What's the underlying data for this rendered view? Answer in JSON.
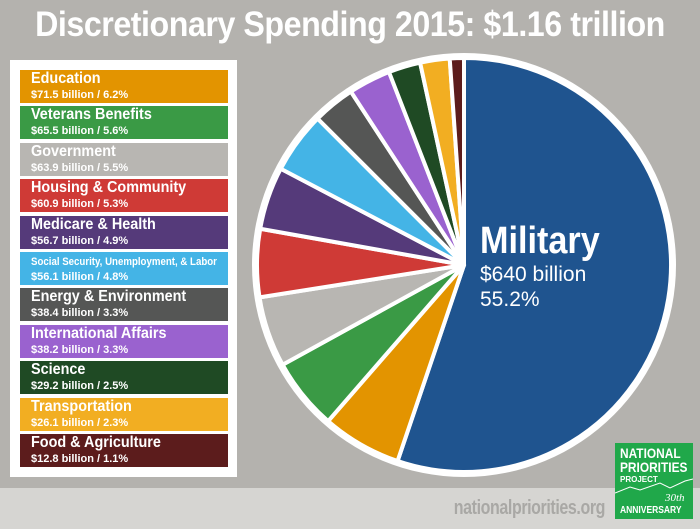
{
  "chart_data": {
    "type": "pie",
    "title": "Discretionary Spending 2015: $1.16 trillion",
    "slices": [
      {
        "name": "Military",
        "value": 640,
        "value_label": "$640 billion",
        "pct": 55.2,
        "pct_label": "55.2%",
        "color": "#1f548f"
      },
      {
        "name": "Education",
        "value": 71.5,
        "value_label": "$71.5 billion / 6.2%",
        "pct": 6.2,
        "color": "#e39400"
      },
      {
        "name": "Veterans Benefits",
        "value": 65.5,
        "value_label": "$65.5 billion / 5.6%",
        "pct": 5.6,
        "color": "#3a9a45"
      },
      {
        "name": "Government",
        "value": 63.9,
        "value_label": "$63.9 billion / 5.5%",
        "pct": 5.5,
        "color": "#b8b6b2"
      },
      {
        "name": "Housing & Community",
        "value": 60.9,
        "value_label": "$60.9 billion / 5.3%",
        "pct": 5.3,
        "color": "#cf3a36"
      },
      {
        "name": "Medicare & Health",
        "value": 56.7,
        "value_label": "$56.7 billion / 4.9%",
        "pct": 4.9,
        "color": "#553a7a"
      },
      {
        "name": "Social Security, Unemployment, & Labor",
        "value": 56.1,
        "value_label": "$56.1 billion / 4.8%",
        "pct": 4.8,
        "color": "#44b4e6"
      },
      {
        "name": "Energy & Environment",
        "value": 38.4,
        "value_label": "$38.4 billion / 3.3%",
        "pct": 3.3,
        "color": "#555655"
      },
      {
        "name": "International Affairs",
        "value": 38.2,
        "value_label": "$38.2 billion / 3.3%",
        "pct": 3.3,
        "color": "#9a62cf"
      },
      {
        "name": "Science",
        "value": 29.2,
        "value_label": "$29.2 billion / 2.5%",
        "pct": 2.5,
        "color": "#1f4a24"
      },
      {
        "name": "Transportation",
        "value": 26.1,
        "value_label": "$26.1 billion / 2.3%",
        "pct": 2.3,
        "color": "#f2ae22"
      },
      {
        "name": "Food & Agriculture",
        "value": 12.8,
        "value_label": "$12.8 billion / 1.1%",
        "pct": 1.1,
        "color": "#5c1c1c"
      }
    ],
    "legend_placement": "left"
  },
  "footer": {
    "url": "nationalpriorities.org"
  },
  "logo": {
    "line1": "NATIONAL",
    "line2": "PRIORITIES",
    "line3": "PROJECT",
    "line4": "30th",
    "line5": "ANNIVERSARY"
  }
}
